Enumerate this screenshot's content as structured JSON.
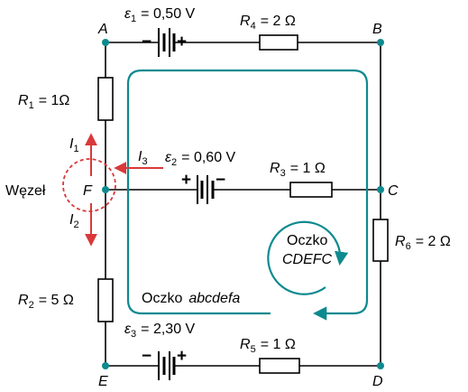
{
  "colors": {
    "wire": "#000000",
    "node": "#0d8a8f",
    "loop": "#0d8a8f",
    "current": "#d9393a",
    "junction_circle": "#d9393a"
  },
  "nodes": {
    "A": "A",
    "B": "B",
    "C": "C",
    "D": "D",
    "E": "E",
    "F": "F"
  },
  "emf": {
    "e1": {
      "sym": "ε",
      "sub": "1",
      "value": "= 0,50 V"
    },
    "e2": {
      "sym": "ε",
      "sub": "2",
      "value": "= 0,60 V"
    },
    "e3": {
      "sym": "ε",
      "sub": "3",
      "value": "= 2,30 V"
    }
  },
  "resistors": {
    "r1": {
      "sym": "R",
      "sub": "1",
      "value": "= 1Ω"
    },
    "r2": {
      "sym": "R",
      "sub": "2",
      "value": "= 5 Ω"
    },
    "r3": {
      "sym": "R",
      "sub": "3",
      "value": "= 1 Ω"
    },
    "r4": {
      "sym": "R",
      "sub": "4",
      "value": "= 2 Ω"
    },
    "r5": {
      "sym": "R",
      "sub": "5",
      "value": "= 1 Ω"
    },
    "r6": {
      "sym": "R",
      "sub": "6",
      "value": "= 2 Ω"
    }
  },
  "currents": {
    "i1": {
      "sym": "I",
      "sub": "1"
    },
    "i2": {
      "sym": "I",
      "sub": "2"
    },
    "i3": {
      "sym": "I",
      "sub": "3"
    }
  },
  "junction_label": "Węzeł",
  "loops": {
    "outer": {
      "word": "Oczko",
      "name": "abcdefa"
    },
    "inner": {
      "word": "Oczko",
      "name": "CDEFC"
    }
  },
  "polarity": {
    "plus": "+",
    "minus": "−"
  }
}
